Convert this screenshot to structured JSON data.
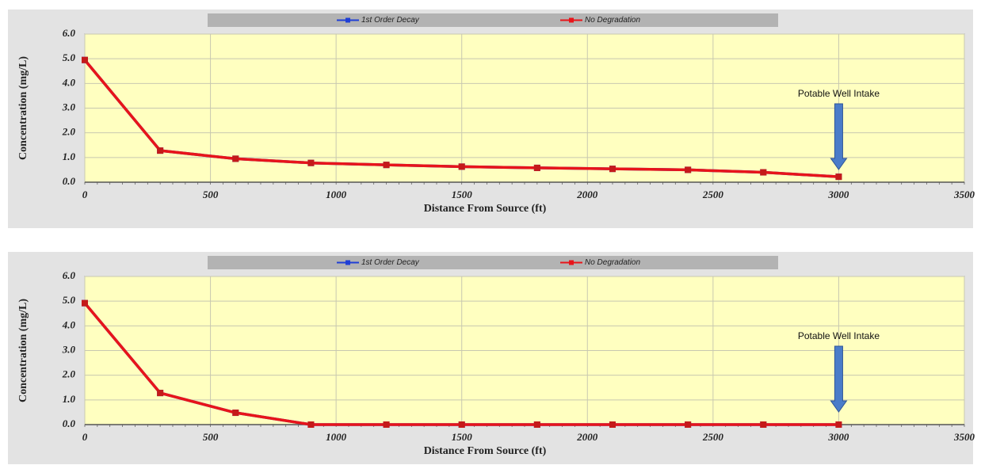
{
  "chart_data": [
    {
      "type": "line",
      "x": [
        0,
        300,
        600,
        900,
        1200,
        1500,
        1800,
        2100,
        2400,
        2700,
        3000
      ],
      "series": [
        {
          "name": "1st Order Decay",
          "color": "#1f3fd6",
          "values": [
            4.95,
            1.28,
            0.95,
            0.78,
            0.7,
            0.63,
            0.58,
            0.54,
            0.5,
            0.4,
            0.22
          ]
        },
        {
          "name": "No Degradation",
          "color": "#e8141a",
          "values": [
            4.95,
            1.28,
            0.95,
            0.78,
            0.7,
            0.63,
            0.58,
            0.54,
            0.5,
            0.4,
            0.22
          ]
        }
      ],
      "xlabel": "Distance From Source (ft)",
      "ylabel": "Concentration (mg/L)",
      "xlim": [
        0,
        3500
      ],
      "xticks": [
        0,
        500,
        1000,
        1500,
        2000,
        2500,
        3000,
        3500
      ],
      "ylim": [
        0,
        6
      ],
      "yticks": [
        {
          "value": 0,
          "label": "0.0"
        },
        {
          "value": 1,
          "label": "1.0"
        },
        {
          "value": 2,
          "label": "2.0"
        },
        {
          "value": 3,
          "label": "3.0"
        },
        {
          "value": 4,
          "label": "4.0"
        },
        {
          "value": 5,
          "label": "5.0"
        },
        {
          "value": 6,
          "label": "6.0"
        }
      ],
      "grid": true,
      "annotation": {
        "text": "Potable Well Intake",
        "x": 3000
      }
    },
    {
      "type": "line",
      "x": [
        0,
        300,
        600,
        900,
        1200,
        1500,
        1800,
        2100,
        2400,
        2700,
        3000
      ],
      "series": [
        {
          "name": "1st Order Decay",
          "color": "#1f3fd6",
          "values": [
            4.92,
            1.28,
            0.48,
            0,
            0,
            0,
            0,
            0,
            0,
            0,
            0
          ]
        },
        {
          "name": "No Degradation",
          "color": "#e8141a",
          "values": [
            4.92,
            1.28,
            0.48,
            0,
            0,
            0,
            0,
            0,
            0,
            0,
            0
          ]
        }
      ],
      "xlabel": "Distance From Source (ft)",
      "ylabel": "Concentration (mg/L)",
      "xlim": [
        0,
        3500
      ],
      "xticks": [
        0,
        500,
        1000,
        1500,
        2000,
        2500,
        3000,
        3500
      ],
      "ylim": [
        0,
        6
      ],
      "yticks": [
        {
          "value": 0,
          "label": "0.0"
        },
        {
          "value": 1,
          "label": "1.0"
        },
        {
          "value": 2,
          "label": "2.0"
        },
        {
          "value": 3,
          "label": "3.0"
        },
        {
          "value": 4,
          "label": "4.0"
        },
        {
          "value": 5,
          "label": "5.0"
        },
        {
          "value": 6,
          "label": "6.0"
        }
      ],
      "grid": true,
      "annotation": {
        "text": "Potable Well Intake",
        "x": 3000
      }
    }
  ]
}
